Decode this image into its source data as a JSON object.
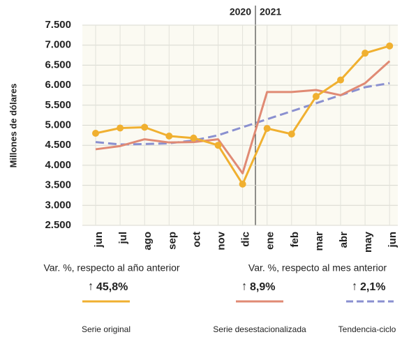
{
  "chart_data": {
    "type": "line",
    "y_label": "Millones de dólares",
    "period_labels": [
      "2020",
      "2021"
    ],
    "categories": [
      "jun",
      "jul",
      "ago",
      "sep",
      "oct",
      "nov",
      "dic",
      "ene",
      "feb",
      "mar",
      "abr",
      "may",
      "jun"
    ],
    "series": [
      {
        "name": "Serie original",
        "color": "#f0b030",
        "markers": true,
        "dash": false,
        "change": "45,8%",
        "values": [
          4800,
          4930,
          4950,
          4730,
          4680,
          4500,
          3530,
          4920,
          4780,
          5720,
          6130,
          6800,
          6980
        ]
      },
      {
        "name": "Serie desestacionalizada",
        "color": "#e08a74",
        "markers": false,
        "dash": false,
        "change": "8,9%",
        "values": [
          4400,
          4480,
          4650,
          4570,
          4580,
          4650,
          3800,
          5830,
          5830,
          5880,
          5750,
          6050,
          6600
        ]
      },
      {
        "name": "Tendencia-ciclo",
        "color": "#8a90d0",
        "markers": false,
        "dash": true,
        "change": "2,1%",
        "values": [
          4580,
          4520,
          4530,
          4550,
          4620,
          4750,
          4950,
          5150,
          5350,
          5550,
          5750,
          5950,
          6050
        ]
      }
    ],
    "change_headers": [
      "Var. %, respecto al año anterior",
      "Var. %, respecto al mes anterior"
    ],
    "ylim": [
      2500,
      7500
    ],
    "yticks": [
      {
        "value": 2500,
        "label": "2.500"
      },
      {
        "value": 3000,
        "label": "3.000"
      },
      {
        "value": 3500,
        "label": "3.500"
      },
      {
        "value": 4000,
        "label": "4.000"
      },
      {
        "value": 4500,
        "label": "4.500"
      },
      {
        "value": 5000,
        "label": "5.000"
      },
      {
        "value": 5500,
        "label": "5.500"
      },
      {
        "value": 6000,
        "label": "6.000"
      },
      {
        "value": 6500,
        "label": "6.500"
      },
      {
        "value": 7000,
        "label": "7.000"
      },
      {
        "value": 7500,
        "label": "7.500"
      }
    ],
    "grid": true
  }
}
